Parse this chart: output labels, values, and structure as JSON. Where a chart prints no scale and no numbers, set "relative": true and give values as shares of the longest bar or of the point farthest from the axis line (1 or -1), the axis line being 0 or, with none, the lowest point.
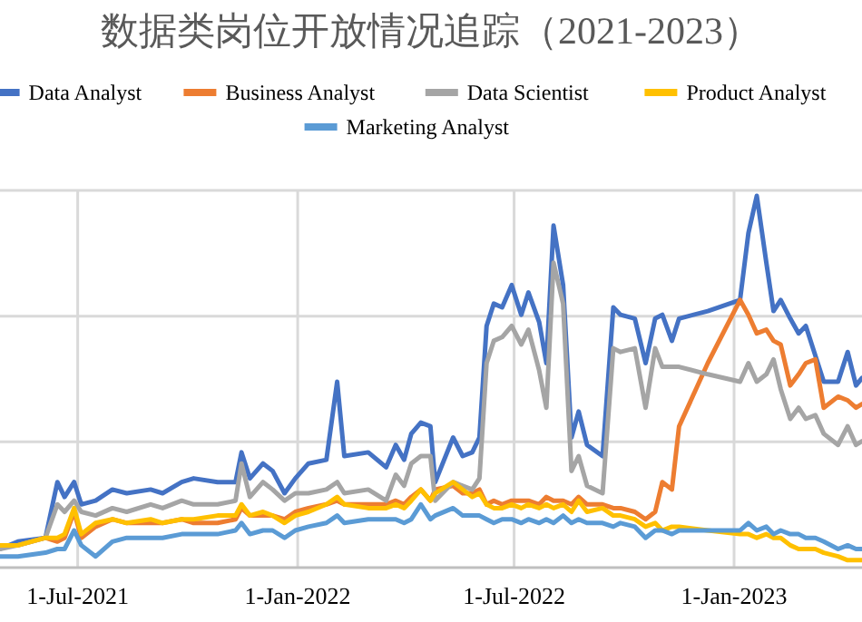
{
  "chart_data": {
    "type": "line",
    "title": "数据类岗位开放情况追踪（2021-2023）",
    "relative": true,
    "grid": true,
    "legend": "top",
    "x": [
      "2021-04-27",
      "2021-05-12",
      "2021-06-04",
      "2021-06-14",
      "2021-06-20",
      "2021-06-28",
      "2021-07-04",
      "2021-07-16",
      "2021-07-30",
      "2021-08-11",
      "2021-08-31",
      "2021-09-10",
      "2021-09-26",
      "2021-10-06",
      "2021-10-26",
      "2021-11-10",
      "2021-11-15",
      "2021-11-22",
      "2021-12-03",
      "2021-12-11",
      "2021-12-21",
      "2021-12-30",
      "2022-01-10",
      "2022-01-25",
      "2022-02-03",
      "2022-02-09",
      "2022-03-01",
      "2022-03-16",
      "2022-03-24",
      "2022-03-31",
      "2022-04-06",
      "2022-04-14",
      "2022-04-22",
      "2022-04-26",
      "2022-05-11",
      "2022-05-19",
      "2022-05-27",
      "2022-06-02",
      "2022-06-08",
      "2022-06-14",
      "2022-06-21",
      "2022-06-29",
      "2022-07-07",
      "2022-07-13",
      "2022-07-22",
      "2022-07-28",
      "2022-08-03",
      "2022-08-11",
      "2022-08-18",
      "2022-08-24",
      "2022-08-31",
      "2022-09-13",
      "2022-09-22",
      "2022-09-28",
      "2022-10-10",
      "2022-10-19",
      "2022-10-27",
      "2022-11-02",
      "2022-11-10",
      "2022-11-16",
      "2022-12-10",
      "2023-01-06",
      "2023-01-13",
      "2023-01-20",
      "2023-01-28",
      "2023-02-03",
      "2023-02-09",
      "2023-02-17",
      "2023-02-24",
      "2023-03-02",
      "2023-03-10",
      "2023-03-17",
      "2023-03-29",
      "2023-04-06",
      "2023-04-13",
      "2023-04-18"
    ],
    "xlim": [
      "2021-04-27",
      "2023-04-18"
    ],
    "xticks": [
      {
        "value": "2021-07-01",
        "label": "1-Jul-2021"
      },
      {
        "value": "2022-01-01",
        "label": "1-Jan-2022"
      },
      {
        "value": "2022-07-01",
        "label": "1-Jul-2022"
      },
      {
        "value": "2023-01-01",
        "label": "1-Jan-2023"
      }
    ],
    "series": [
      {
        "name": "Data Analyst",
        "color": "#4472c4",
        "values": [
          0.05,
          0.07,
          0.08,
          0.23,
          0.19,
          0.23,
          0.17,
          0.18,
          0.21,
          0.2,
          0.21,
          0.2,
          0.23,
          0.24,
          0.23,
          0.23,
          0.31,
          0.24,
          0.28,
          0.26,
          0.2,
          0.24,
          0.28,
          0.29,
          0.5,
          0.3,
          0.31,
          0.27,
          0.33,
          0.29,
          0.36,
          0.39,
          0.38,
          0.23,
          0.35,
          0.3,
          0.31,
          0.35,
          0.65,
          0.71,
          0.7,
          0.76,
          0.68,
          0.74,
          0.66,
          0.55,
          0.92,
          0.76,
          0.35,
          0.42,
          0.33,
          0.3,
          0.7,
          0.68,
          0.67,
          0.55,
          0.67,
          0.68,
          0.61,
          0.67,
          0.69,
          0.72,
          0.9,
          1,
          0.82,
          0.69,
          0.72,
          0.67,
          0.63,
          0.65,
          0.57,
          0.5,
          0.5,
          0.58,
          0.49,
          0.51
        ]
      },
      {
        "name": "Business Analyst",
        "color": "#ed7d31",
        "values": [
          0.06,
          0.06,
          0.08,
          0.07,
          0.08,
          0.15,
          0.08,
          0.11,
          0.13,
          0.12,
          0.12,
          0.12,
          0.13,
          0.12,
          0.12,
          0.13,
          0.16,
          0.14,
          0.14,
          0.14,
          0.13,
          0.15,
          0.16,
          0.17,
          0.18,
          0.17,
          0.17,
          0.17,
          0.18,
          0.17,
          0.19,
          0.21,
          0.18,
          0.21,
          0.22,
          0.2,
          0.2,
          0.21,
          0.17,
          0.18,
          0.17,
          0.18,
          0.18,
          0.18,
          0.17,
          0.19,
          0.18,
          0.18,
          0.17,
          0.19,
          0.17,
          0.17,
          0.16,
          0.16,
          0.15,
          0.13,
          0.15,
          0.23,
          0.21,
          0.38,
          0.55,
          0.72,
          0.68,
          0.63,
          0.64,
          0.61,
          0.6,
          0.49,
          0.52,
          0.55,
          0.56,
          0.43,
          0.46,
          0.45,
          0.43,
          0.44
        ]
      },
      {
        "name": "Data Scientist",
        "color": "#a5a5a5",
        "values": [
          0.05,
          0.06,
          0.08,
          0.17,
          0.15,
          0.18,
          0.15,
          0.14,
          0.16,
          0.15,
          0.17,
          0.16,
          0.18,
          0.17,
          0.17,
          0.18,
          0.28,
          0.19,
          0.23,
          0.21,
          0.18,
          0.2,
          0.2,
          0.21,
          0.23,
          0.2,
          0.21,
          0.18,
          0.25,
          0.22,
          0.28,
          0.3,
          0.3,
          0.18,
          0.23,
          0.22,
          0.21,
          0.24,
          0.55,
          0.61,
          0.62,
          0.65,
          0.6,
          0.64,
          0.53,
          0.43,
          0.82,
          0.71,
          0.26,
          0.3,
          0.22,
          0.2,
          0.59,
          0.58,
          0.59,
          0.43,
          0.59,
          0.54,
          0.54,
          0.54,
          0.52,
          0.5,
          0.55,
          0.5,
          0.52,
          0.56,
          0.48,
          0.4,
          0.43,
          0.4,
          0.41,
          0.36,
          0.33,
          0.38,
          0.33,
          0.34
        ]
      },
      {
        "name": "Product Analyst",
        "color": "#ffc000",
        "values": [
          0.06,
          0.06,
          0.08,
          0.08,
          0.09,
          0.16,
          0.09,
          0.12,
          0.13,
          0.12,
          0.13,
          0.12,
          0.13,
          0.13,
          0.14,
          0.14,
          0.17,
          0.14,
          0.15,
          0.14,
          0.12,
          0.14,
          0.15,
          0.17,
          0.19,
          0.17,
          0.16,
          0.16,
          0.17,
          0.16,
          0.18,
          0.21,
          0.18,
          0.2,
          0.23,
          0.21,
          0.19,
          0.2,
          0.17,
          0.16,
          0.16,
          0.17,
          0.16,
          0.17,
          0.16,
          0.17,
          0.16,
          0.17,
          0.15,
          0.18,
          0.15,
          0.16,
          0.14,
          0.14,
          0.13,
          0.11,
          0.12,
          0.1,
          0.11,
          0.11,
          0.1,
          0.09,
          0.09,
          0.08,
          0.09,
          0.08,
          0.08,
          0.06,
          0.05,
          0.05,
          0.05,
          0.04,
          0.03,
          0.02,
          0.02,
          0.02
        ]
      },
      {
        "name": "Marketing Analyst",
        "color": "#5b9bd5",
        "values": [
          0.03,
          0.03,
          0.04,
          0.05,
          0.05,
          0.1,
          0.06,
          0.03,
          0.07,
          0.08,
          0.08,
          0.08,
          0.09,
          0.09,
          0.09,
          0.1,
          0.12,
          0.09,
          0.1,
          0.1,
          0.08,
          0.1,
          0.11,
          0.12,
          0.14,
          0.12,
          0.13,
          0.13,
          0.13,
          0.12,
          0.13,
          0.17,
          0.13,
          0.14,
          0.16,
          0.14,
          0.14,
          0.14,
          0.13,
          0.12,
          0.13,
          0.13,
          0.12,
          0.13,
          0.12,
          0.13,
          0.12,
          0.14,
          0.12,
          0.13,
          0.12,
          0.12,
          0.11,
          0.12,
          0.11,
          0.08,
          0.1,
          0.1,
          0.09,
          0.1,
          0.1,
          0.1,
          0.12,
          0.1,
          0.11,
          0.09,
          0.1,
          0.09,
          0.09,
          0.08,
          0.08,
          0.07,
          0.05,
          0.06,
          0.05,
          0.05
        ]
      }
    ]
  }
}
